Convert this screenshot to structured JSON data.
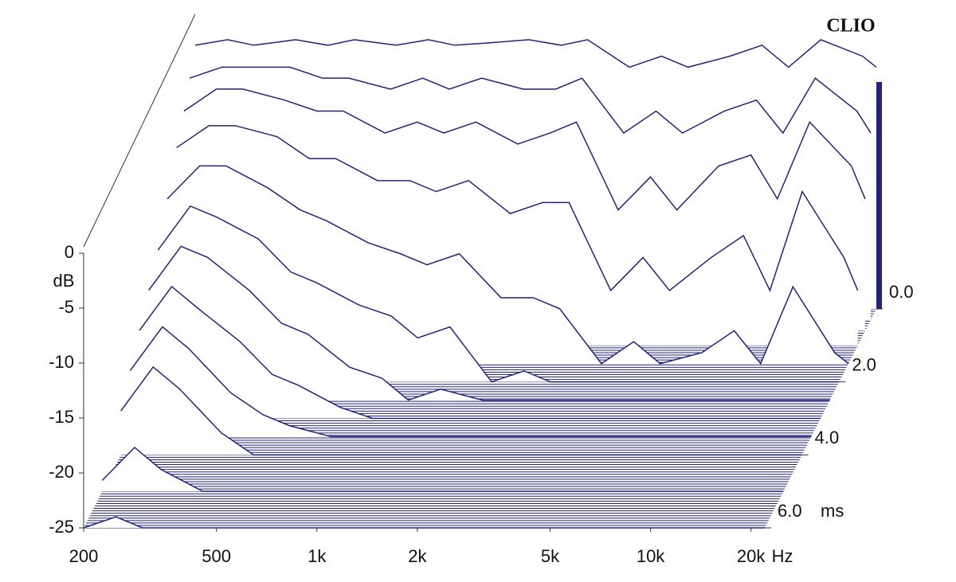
{
  "chart_data": {
    "type": "waterfall",
    "watermark": "CLIO",
    "y_label": "dB",
    "x_unit": "Hz",
    "z_unit": "ms",
    "color": "#22227a",
    "x": [
      200,
      250,
      300,
      400,
      500,
      600,
      800,
      1000,
      1200,
      1500,
      2000,
      2500,
      3000,
      4000,
      5000,
      6000,
      8000,
      10000,
      12000,
      15000,
      20000,
      22000
    ],
    "z": [
      0,
      0.3,
      0.6,
      1.0,
      1.5,
      2.0,
      2.5,
      3.0,
      3.5,
      4.0,
      5.0,
      6.0
    ],
    "values": [
      [
        -1,
        -0.5,
        -1,
        -0.5,
        -1,
        -0.5,
        -1,
        -0.5,
        -1,
        -0.8,
        -0.5,
        -1,
        -0.5,
        -3,
        -2,
        -3,
        -2,
        -1,
        -3,
        -0.5,
        -2,
        -3
      ],
      [
        -3,
        -2,
        -2,
        -2,
        -3,
        -3,
        -4,
        -3,
        -4,
        -3,
        -4,
        -4,
        -3,
        -8,
        -6,
        -8,
        -6,
        -5,
        -8,
        -3,
        -6,
        -8
      ],
      [
        -5,
        -3,
        -3,
        -4,
        -5,
        -5,
        -7,
        -6,
        -7,
        -6,
        -8,
        -7,
        -6,
        -14,
        -11,
        -14,
        -10,
        -9,
        -13,
        -6,
        -10,
        -13
      ],
      [
        -7,
        -5,
        -5,
        -6,
        -8,
        -8,
        -10,
        -10,
        -11,
        -10,
        -13,
        -12,
        -12,
        -20,
        -17,
        -20,
        -17,
        -15,
        -20,
        -11,
        -17,
        -20
      ],
      [
        -10,
        -7,
        -7,
        -9,
        -11,
        -12,
        -14,
        -15,
        -16,
        -15,
        -19,
        -19,
        -20,
        -25,
        -23,
        -25,
        -24,
        -22,
        -25,
        -18,
        -24,
        -25
      ],
      [
        -13,
        -9,
        -10,
        -12,
        -15,
        -16,
        -18,
        -19,
        -21,
        -20,
        -25,
        -24,
        -25,
        -25,
        -25,
        -25,
        -25,
        -25,
        -25,
        -25,
        -25,
        -25
      ],
      [
        -15,
        -11,
        -12,
        -15,
        -18,
        -19,
        -22,
        -23,
        -25,
        -24,
        -25,
        -25,
        -25,
        -25,
        -25,
        -25,
        -25,
        -25,
        -25,
        -25,
        -25,
        -25
      ],
      [
        -17,
        -13,
        -15,
        -18,
        -21,
        -22,
        -24,
        -25,
        -25,
        -25,
        -25,
        -25,
        -25,
        -25,
        -25,
        -25,
        -25,
        -25,
        -25,
        -25,
        -25,
        -25
      ],
      [
        -19,
        -15,
        -17,
        -21,
        -23,
        -24,
        -25,
        -25,
        -25,
        -25,
        -25,
        -25,
        -25,
        -25,
        -25,
        -25,
        -25,
        -25,
        -25,
        -25,
        -25,
        -25
      ],
      [
        -21,
        -17,
        -19,
        -23,
        -25,
        -25,
        -25,
        -25,
        -25,
        -25,
        -25,
        -25,
        -25,
        -25,
        -25,
        -25,
        -25,
        -25,
        -25,
        -25,
        -25,
        -25
      ],
      [
        -24,
        -21,
        -23,
        -25,
        -25,
        -25,
        -25,
        -25,
        -25,
        -25,
        -25,
        -25,
        -25,
        -25,
        -25,
        -25,
        -25,
        -25,
        -25,
        -25,
        -25,
        -25
      ],
      [
        -25,
        -24,
        -25,
        -25,
        -25,
        -25,
        -25,
        -25,
        -25,
        -25,
        -25,
        -25,
        -25,
        -25,
        -25,
        -25,
        -25,
        -25,
        -25,
        -25,
        -25,
        -25
      ]
    ],
    "xlim": [
      200,
      22000
    ],
    "xticks": [
      200,
      500,
      {
        "value": 1000,
        "label": "1k"
      },
      {
        "value": 2000,
        "label": "2k"
      },
      {
        "value": 5000,
        "label": "5k"
      },
      {
        "value": 10000,
        "label": "10k"
      },
      {
        "value": 20000,
        "label": "20k"
      }
    ],
    "ylim": [
      -25,
      0
    ],
    "yticks": [
      0,
      -5,
      -10,
      -15,
      -20,
      -25
    ],
    "zlim": [
      0,
      6
    ],
    "zticks": [
      {
        "value": 0,
        "label": "0.0"
      },
      {
        "value": 2,
        "label": "2.0"
      },
      {
        "value": 4,
        "label": "4.0"
      },
      {
        "value": 6,
        "label": "6.0"
      }
    ]
  }
}
